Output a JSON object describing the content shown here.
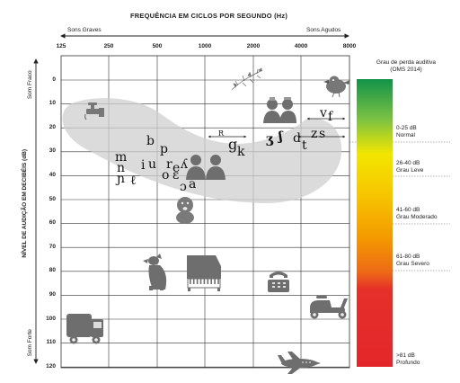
{
  "header": {
    "title": "FREQUÊNCIA EM CICLOS POR SEGUNDO (Hz)",
    "left_label": "Sons Graves",
    "right_label": "Sons Agudos"
  },
  "axes": {
    "x_ticks": [
      "125",
      "250",
      "500",
      "1000",
      "2000",
      "4000",
      "8000"
    ],
    "y_ticks": [
      "0",
      "10",
      "20",
      "30",
      "40",
      "50",
      "60",
      "70",
      "80",
      "90",
      "100",
      "110",
      "120"
    ],
    "y_label": "NÍVEL DE AUDIÇÃO EM DECIBÉIS (dB)",
    "y_top_label": "Som Fraco",
    "y_bottom_label": "Som Forte"
  },
  "phonemes": [
    "b",
    "p",
    "m",
    "n",
    "ɲ",
    "ℓ",
    "i",
    "u",
    "r",
    "e",
    "ʎ",
    "o",
    "ɛ",
    "ɔ",
    "a",
    "g",
    "k",
    "R",
    "ʒ",
    "ʃ",
    "d",
    "t",
    "v",
    "f",
    "z",
    "s"
  ],
  "icons": [
    "leaves-icon",
    "bird-icon",
    "faucet-icon",
    "couple-icon",
    "couple-talking-icon",
    "baby-icon",
    "dog-icon",
    "piano-icon",
    "telephone-icon",
    "scooter-icon",
    "truck-icon",
    "airplane-icon"
  ],
  "legend": {
    "title_line1": "Grau de perda auditiva",
    "title_line2": "(OMS 2014)",
    "items": [
      {
        "range": "0-25 dB",
        "label": "Normal"
      },
      {
        "range": "26-40 dB",
        "label": "Grau Leve"
      },
      {
        "range": "41-60 dB",
        "label": "Grau Moderado"
      },
      {
        "range": "61-80 dB",
        "label": "Grau Severo"
      },
      {
        "range": ">81 dB",
        "label": "Profundo"
      }
    ],
    "gradient": [
      "#1a9a4a",
      "#f5e600",
      "#f5a000",
      "#e8302a"
    ]
  }
}
